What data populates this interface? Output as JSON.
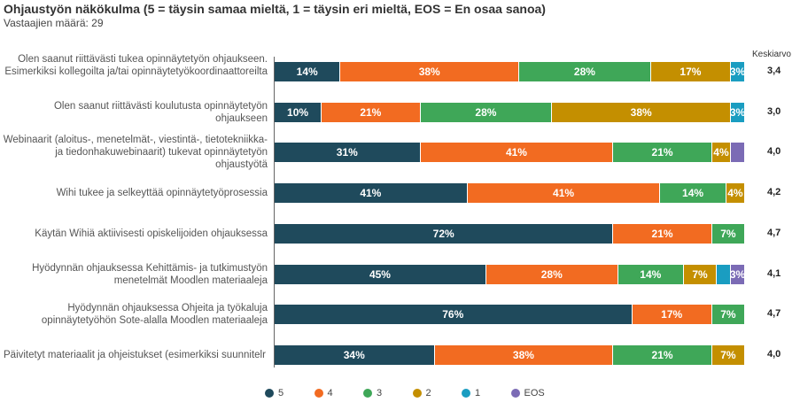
{
  "chart_data": {
    "type": "bar",
    "stacked": true,
    "orientation": "horizontal",
    "title": "Ohjaustyön näkökulma (5 = täysin samaa mieltä, 1 = täysin eri mieltä, EOS = En osaa sanoa)",
    "subtitle": "Vastaajien määrä: 29",
    "mean_header": "Keskiarvo",
    "categories": [
      "Olen saanut riittävästi tukea opinnäytetyön ohjaukseen. Esimerkiksi kollegoilta ja/tai opinnäytetyökoordinaattoreilta",
      "Olen saanut riittävästi koulutusta opinnäytetyön ohjaukseen",
      "Webinaarit (aloitus-, menetelmät-, viestintä-, tietotekniikka- ja tiedonhakuwebinaarit) tukevat opinnäytetyön ohjaustyötä",
      "Wihi tukee ja selkeyttää opinnäytetyöprosessia",
      "Käytän Wihiä aktiivisesti opiskelijoiden ohjauksessa",
      "Hyödynnän ohjauksessa Kehittämis- ja tutkimustyön menetelmät Moodlen materiaaleja",
      "Hyödynnän ohjauksessa Ohjeita ja työkaluja opinnäytetyöhön Sote-alalla Moodlen materiaaleja",
      "Päivitetyt materiaalit ja ohjeistukset (esimerkiksi suunnitelr"
    ],
    "series": [
      {
        "name": "5",
        "color": "#1f4a5c",
        "values": [
          14,
          10,
          31,
          41,
          72,
          45,
          76,
          34
        ]
      },
      {
        "name": "4",
        "color": "#f26b21",
        "values": [
          38,
          21,
          41,
          41,
          21,
          28,
          17,
          38
        ]
      },
      {
        "name": "3",
        "color": "#3fa758",
        "values": [
          28,
          28,
          21,
          14,
          7,
          14,
          7,
          21
        ]
      },
      {
        "name": "2",
        "color": "#c48f00",
        "values": [
          17,
          38,
          4,
          4,
          0,
          7,
          0,
          7
        ]
      },
      {
        "name": "1",
        "color": "#1a9dc1",
        "values": [
          3,
          3,
          0,
          0,
          0,
          3,
          0,
          0
        ]
      },
      {
        "name": "EOS",
        "color": "#7b6bb5",
        "values": [
          0,
          0,
          3,
          0,
          0,
          3,
          0,
          0
        ]
      }
    ],
    "hidden_labels": [
      [],
      [],
      [
        [
          5
        ]
      ],
      [],
      [],
      [
        [
          4
        ]
      ],
      [],
      []
    ],
    "means": [
      "3,4",
      "3,0",
      "4,0",
      "4,2",
      "4,7",
      "4,1",
      "4,7",
      "4,0"
    ],
    "unit": "%",
    "legend": "bottom"
  }
}
